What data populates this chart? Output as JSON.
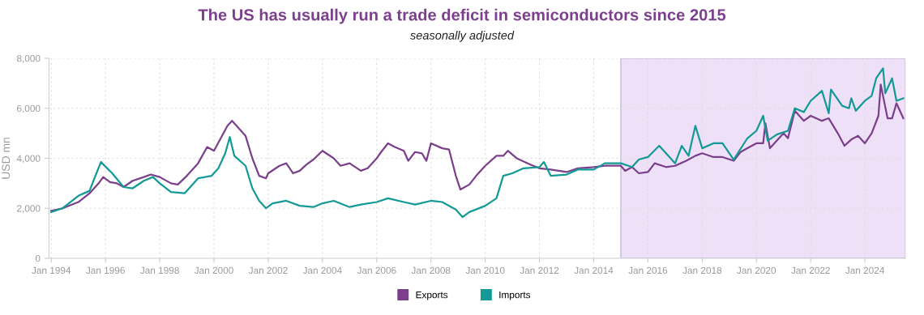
{
  "chart_data": {
    "type": "line",
    "title": "The US has usually run a trade deficit in semiconductors since 2015",
    "subtitle": "seasonally adjusted",
    "ylabel": "USD mn",
    "xlim": [
      "1993-12",
      "2025-07"
    ],
    "xticks": [
      {
        "value": "1994-01",
        "label": "Jan 1994"
      },
      {
        "value": "1996-01",
        "label": "Jan 1996"
      },
      {
        "value": "1998-01",
        "label": "Jan 1998"
      },
      {
        "value": "2000-01",
        "label": "Jan 2000"
      },
      {
        "value": "2002-01",
        "label": "Jan 2002"
      },
      {
        "value": "2004-01",
        "label": "Jan 2004"
      },
      {
        "value": "2006-01",
        "label": "Jan 2006"
      },
      {
        "value": "2008-01",
        "label": "Jan 2008"
      },
      {
        "value": "2010-01",
        "label": "Jan 2010"
      },
      {
        "value": "2012-01",
        "label": "Jan 2012"
      },
      {
        "value": "2014-01",
        "label": "Jan 2014"
      },
      {
        "value": "2016-01",
        "label": "Jan 2016"
      },
      {
        "value": "2018-01",
        "label": "Jan 2018"
      },
      {
        "value": "2020-01",
        "label": "Jan 2020"
      },
      {
        "value": "2022-01",
        "label": "Jan 2022"
      },
      {
        "value": "2024-01",
        "label": "Jan 2024"
      }
    ],
    "ylim": [
      0,
      8000
    ],
    "yticks": [
      {
        "value": 0,
        "label": "0"
      },
      {
        "value": 2000,
        "label": "2,000"
      },
      {
        "value": 4000,
        "label": "4,000"
      },
      {
        "value": 6000,
        "label": "6,000"
      },
      {
        "value": 8000,
        "label": "8,000"
      }
    ],
    "grid": true,
    "legend": "bottom",
    "line_style": "solid",
    "marker": "none",
    "bands": [
      {
        "axis": "x",
        "from": "2015-01",
        "to": "2025-07",
        "color": "#ede0f7"
      }
    ],
    "series": [
      {
        "name": "Exports",
        "color": "#7b3f8c",
        "x": [
          "1994-01",
          "1994-06",
          "1995-01",
          "1995-06",
          "1995-10",
          "1995-12",
          "1996-03",
          "1996-06",
          "1996-09",
          "1997-01",
          "1997-06",
          "1997-09",
          "1998-01",
          "1998-06",
          "1998-09",
          "1999-01",
          "1999-06",
          "1999-10",
          "2000-01",
          "2000-04",
          "2000-07",
          "2000-09",
          "2000-12",
          "2001-03",
          "2001-06",
          "2001-09",
          "2001-12",
          "2002-01",
          "2002-06",
          "2002-09",
          "2002-12",
          "2003-03",
          "2003-06",
          "2003-09",
          "2004-01",
          "2004-06",
          "2004-09",
          "2005-01",
          "2005-06",
          "2005-09",
          "2006-01",
          "2006-03",
          "2006-06",
          "2006-09",
          "2007-01",
          "2007-03",
          "2007-06",
          "2007-09",
          "2007-11",
          "2008-01",
          "2008-06",
          "2008-09",
          "2008-12",
          "2009-02",
          "2009-06",
          "2009-09",
          "2010-01",
          "2010-06",
          "2010-09",
          "2010-11",
          "2011-03",
          "2011-09",
          "2012-01",
          "2012-06",
          "2013-01",
          "2013-06",
          "2014-01",
          "2014-06",
          "2015-01",
          "2015-03",
          "2015-06",
          "2015-09",
          "2016-01",
          "2016-04",
          "2016-09",
          "2017-01",
          "2017-06",
          "2017-10",
          "2018-01",
          "2018-06",
          "2018-10",
          "2019-03",
          "2019-06",
          "2019-10",
          "2020-01",
          "2020-04",
          "2020-05",
          "2020-07",
          "2020-10",
          "2021-01",
          "2021-03",
          "2021-06",
          "2021-10",
          "2022-01",
          "2022-06",
          "2022-09",
          "2023-01",
          "2023-04",
          "2023-07",
          "2023-10",
          "2024-01",
          "2024-04",
          "2024-07",
          "2024-08",
          "2024-11",
          "2025-01",
          "2025-03",
          "2025-06"
        ],
        "values": [
          1900,
          2000,
          2250,
          2600,
          3000,
          3250,
          3050,
          3000,
          2850,
          3100,
          3250,
          3350,
          3250,
          3000,
          2950,
          3300,
          3800,
          4450,
          4300,
          4800,
          5300,
          5500,
          5200,
          4900,
          4000,
          3300,
          3200,
          3400,
          3700,
          3800,
          3400,
          3500,
          3750,
          3950,
          4300,
          4000,
          3700,
          3800,
          3500,
          3600,
          4000,
          4250,
          4600,
          4450,
          4300,
          3900,
          4250,
          4200,
          3900,
          4600,
          4400,
          4350,
          3300,
          2750,
          2950,
          3300,
          3700,
          4100,
          4100,
          4300,
          4000,
          3750,
          3600,
          3550,
          3450,
          3600,
          3650,
          3700,
          3700,
          3500,
          3650,
          3400,
          3450,
          3800,
          3650,
          3700,
          3900,
          4100,
          4200,
          4050,
          4050,
          3900,
          4250,
          4450,
          4600,
          4600,
          5400,
          4400,
          4700,
          5000,
          4800,
          5900,
          5500,
          5700,
          5500,
          5600,
          5000,
          4500,
          4750,
          4900,
          4600,
          5000,
          5700,
          6950,
          5600,
          5600,
          6200,
          5600
        ]
      },
      {
        "name": "Imports",
        "color": "#139a96",
        "x": [
          "1994-01",
          "1994-06",
          "1995-01",
          "1995-06",
          "1995-09",
          "1995-11",
          "1996-04",
          "1996-09",
          "1997-01",
          "1997-06",
          "1997-10",
          "1998-01",
          "1998-06",
          "1998-12",
          "1999-06",
          "1999-12",
          "2000-03",
          "2000-06",
          "2000-08",
          "2000-10",
          "2001-03",
          "2001-06",
          "2001-09",
          "2001-12",
          "2002-03",
          "2002-09",
          "2003-03",
          "2003-09",
          "2004-01",
          "2004-06",
          "2005-01",
          "2005-06",
          "2006-01",
          "2006-06",
          "2007-01",
          "2007-06",
          "2008-01",
          "2008-06",
          "2008-12",
          "2009-03",
          "2009-06",
          "2010-01",
          "2010-06",
          "2010-09",
          "2011-01",
          "2011-06",
          "2012-01",
          "2012-03",
          "2012-06",
          "2013-01",
          "2013-06",
          "2014-01",
          "2014-06",
          "2015-01",
          "2015-06",
          "2015-09",
          "2016-01",
          "2016-06",
          "2016-09",
          "2017-01",
          "2017-04",
          "2017-07",
          "2017-10",
          "2018-01",
          "2018-06",
          "2018-10",
          "2019-03",
          "2019-09",
          "2020-01",
          "2020-04",
          "2020-06",
          "2020-10",
          "2021-03",
          "2021-06",
          "2021-10",
          "2022-01",
          "2022-06",
          "2022-09",
          "2022-10",
          "2023-03",
          "2023-06",
          "2023-07",
          "2023-09",
          "2024-01",
          "2024-04",
          "2024-06",
          "2024-09",
          "2024-10",
          "2025-01",
          "2025-03",
          "2025-06"
        ],
        "values": [
          1850,
          2000,
          2500,
          2700,
          3400,
          3850,
          3400,
          2850,
          2800,
          3100,
          3250,
          3000,
          2650,
          2600,
          3200,
          3300,
          3600,
          4200,
          4850,
          4100,
          3700,
          2800,
          2300,
          2000,
          2200,
          2300,
          2100,
          2050,
          2200,
          2300,
          2050,
          2150,
          2250,
          2400,
          2250,
          2150,
          2300,
          2250,
          1950,
          1650,
          1850,
          2100,
          2400,
          3300,
          3400,
          3600,
          3650,
          3850,
          3300,
          3350,
          3550,
          3550,
          3800,
          3800,
          3650,
          3950,
          4050,
          4500,
          4200,
          3800,
          4500,
          4100,
          5300,
          4400,
          4600,
          4600,
          3950,
          4800,
          5100,
          5700,
          4700,
          4950,
          5100,
          6000,
          5850,
          6300,
          6700,
          5800,
          6750,
          6100,
          6000,
          6400,
          5900,
          6300,
          6500,
          7200,
          7600,
          6600,
          7200,
          6300,
          6400
        ]
      }
    ]
  }
}
